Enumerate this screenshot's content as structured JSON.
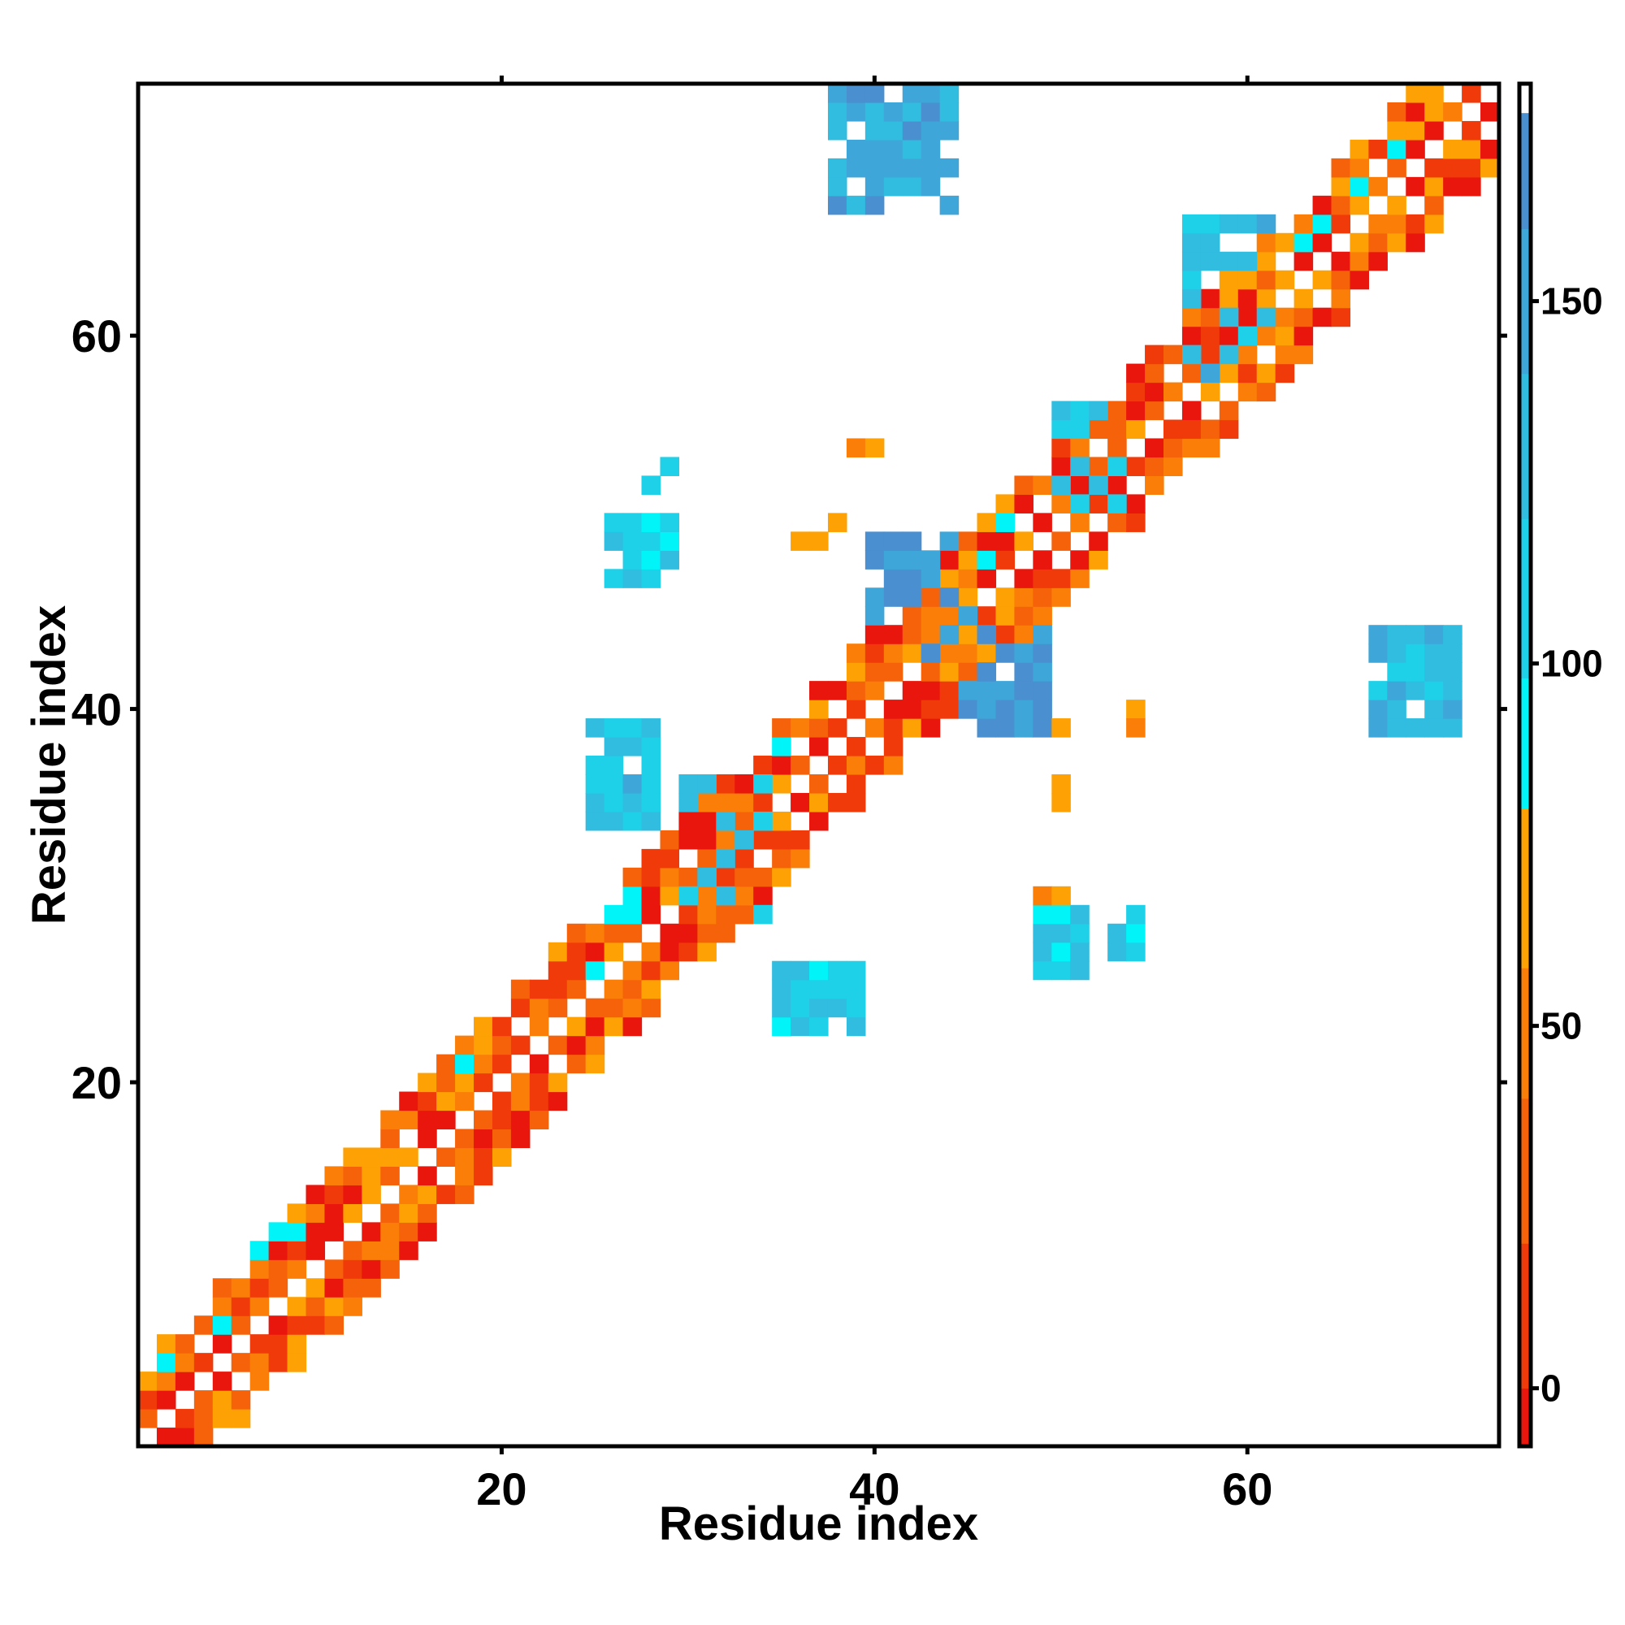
{
  "chart_data": {
    "type": "heatmap",
    "title": "",
    "xlabel": "Residue index",
    "ylabel": "Residue index",
    "xlim": [
      1,
      73
    ],
    "ylim": [
      1,
      73
    ],
    "x_ticks": [
      20,
      40,
      60
    ],
    "y_ticks": [
      20,
      40,
      60
    ],
    "colorbar": {
      "range": [
        -8,
        180
      ],
      "ticks": [
        0,
        50,
        100,
        150
      ],
      "bands": [
        {
          "from": -8,
          "to": 0,
          "color": "#e8160c"
        },
        {
          "from": 0,
          "to": 20,
          "color": "#f13a0a"
        },
        {
          "from": 20,
          "to": 40,
          "color": "#f6620a"
        },
        {
          "from": 40,
          "to": 58,
          "color": "#fa7e08"
        },
        {
          "from": 58,
          "to": 80,
          "color": "#fda104"
        },
        {
          "from": 80,
          "to": 98,
          "color": "#00f4f8"
        },
        {
          "from": 98,
          "to": 120,
          "color": "#1ed0e8"
        },
        {
          "from": 120,
          "to": 140,
          "color": "#30bde0"
        },
        {
          "from": 140,
          "to": 160,
          "color": "#3ea6d8"
        },
        {
          "from": 160,
          "to": 176,
          "color": "#4a8fcf"
        },
        {
          "from": 176,
          "to": 180,
          "color": "#ffffff"
        }
      ]
    },
    "palette": [
      "#e8160c",
      "#f13a0a",
      "#f6620a",
      "#fa7e08",
      "#fda104",
      "#00f4f8",
      "#1ed0e8",
      "#30bde0",
      "#3ea6d8",
      "#4a8fcf"
    ],
    "diagonal_band": {
      "x_start": 1,
      "x_end": 73,
      "y_offset_start": 3,
      "y_offset_end": 6,
      "step_y": 2,
      "note_values_cycle": [
        0,
        20,
        40,
        60,
        80
      ]
    },
    "clusters": [
      {
        "x_range": [
          38,
          44
        ],
        "y_range": [
          67,
          73
        ],
        "value": 145
      },
      {
        "x_range": [
          40,
          45
        ],
        "y_range": [
          43,
          49
        ],
        "value": 165
      },
      {
        "x_range": [
          45,
          49
        ],
        "y_range": [
          39,
          44
        ],
        "value": 165
      },
      {
        "x_range": [
          67,
          71
        ],
        "y_range": [
          39,
          44
        ],
        "value": 130
      },
      {
        "x_range": [
          25,
          28
        ],
        "y_range": [
          34,
          39
        ],
        "value": 120
      },
      {
        "x_range": [
          26,
          29
        ],
        "y_range": [
          47,
          50
        ],
        "value": 110
      },
      {
        "x_range": [
          35,
          39
        ],
        "y_range": [
          23,
          26
        ],
        "value": 115
      },
      {
        "x_range": [
          49,
          51
        ],
        "y_range": [
          26,
          29
        ],
        "value": 110
      },
      {
        "x_range": [
          53,
          54
        ],
        "y_range": [
          27,
          29
        ],
        "value": 110
      },
      {
        "x_range": [
          30,
          34
        ],
        "y_range": [
          29,
          36
        ],
        "value": 120
      },
      {
        "x_range": [
          57,
          61
        ],
        "y_range": [
          58,
          66
        ],
        "value": 120
      },
      {
        "x_range": [
          50,
          53
        ],
        "y_range": [
          51,
          56
        ],
        "value": 120
      },
      {
        "x_range": [
          28,
          29
        ],
        "y_range": [
          52,
          53
        ],
        "value": 110
      }
    ],
    "orange_specks": [
      {
        "x": 39,
        "y": 54,
        "value": 40
      },
      {
        "x": 40,
        "y": 54,
        "value": 60
      },
      {
        "x": 38,
        "y": 50,
        "value": 60
      },
      {
        "x": 36,
        "y": 49,
        "value": 60
      },
      {
        "x": 37,
        "y": 49,
        "value": 60
      },
      {
        "x": 29,
        "y": 49,
        "value": 60
      },
      {
        "x": 29,
        "y": 48,
        "value": 40
      },
      {
        "x": 50,
        "y": 39,
        "value": 60
      },
      {
        "x": 50,
        "y": 36,
        "value": 60
      },
      {
        "x": 50,
        "y": 35,
        "value": 60
      },
      {
        "x": 54,
        "y": 40,
        "value": 60
      },
      {
        "x": 54,
        "y": 39,
        "value": 40
      },
      {
        "x": 49,
        "y": 30,
        "value": 40
      },
      {
        "x": 50,
        "y": 30,
        "value": 60
      },
      {
        "x": 38,
        "y": 26,
        "value": 60
      }
    ]
  }
}
